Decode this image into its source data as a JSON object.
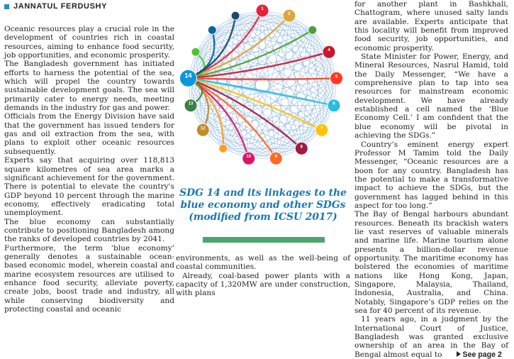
{
  "byline": "JANNATUL FERDUSHY",
  "col1": [
    "Oceanic resources play a crucial role in the development of countries rich in coastal resources, aiming to enhance food security, job opportunities, and economic prosperity.",
    "The Bangladesh government has initiated efforts to harness the potential of the sea, which will propel the country towards sustainable development goals. The sea will primarily cater to energy needs, meeting demands in the industry for gas and power.",
    "Officials from the Energy Division have said that the government has issued tenders for gas and oil extraction from the sea, with plans to exploit other oceanic resources subsequently.",
    "Experts say that acquiring over 118,813 square kilometres of sea area marks a significant achievement for the government. There is potential to elevate the country's GDP beyond 10 percent through the marine economy, effectively eradicating total unemployment.",
    "The blue economy can substantially contribute to positioning Bangladesh among the ranks of developed countries by 2041.",
    "Furthermore, the term ‘blue economy’ generally denotes a sustainable ocean-based economic model, wherein coastal and marine ecosystem resources are utilised to enhance food security, alleviate poverty, create jobs, boost trade and industry, all while conserving biodiversity and protecting coastal and oceanic"
  ],
  "col2": [
    "environments, as well as the well-being of coastal communities.",
    "Already, coal-based power plants with a capacity of 1,320MW are under construction, with plans"
  ],
  "col3": [
    "for another plant in Bashkhali, Chattogram, where unused salty lands are available. Experts anticipate that this locality will benefit from improved food security, job opportunities, and economic prosperity.",
    "State Minister for Power, Energy, and Mineral Resources, Nasrul Hamid, told the Daily Messenger, “We have a comprehensive plan to tap into sea resources for mainstream economic development. We have already established a cell named the ‘Blue Economy Cell.’ I am confident that the blue economy will be pivotal in achieving the SDGs.”",
    "Country’s eminent energy expert Professor M Tamim told the Daily Messenger, “Oceanic resources are a boon for any country. Bangladesh has the potential to make a transformative impact to achieve the SDGs, but the government has lagged behind in this aspect for too long.”",
    "The Bay of Bengal harbours abundant resources. Beneath its brackish waters lie vast reserves of valuable minerals and marine life. Marine tourism alone presents a billion-dollar revenue opportunity. The maritime economy has bolstered the economies of maritime nations like Hong Kong, Japan, Singapore, Malaysia, Thailand, Indonesia, Australia, and China. Notably, Singapore’s GDP relies on the sea for 40 percent of its revenue.",
    "11 years ago, in a judgment by the International Court of Justice, Bangladesh was granted exclusive ownership of an area in the Bay of Bengal almost equal to"
  ],
  "see_page": "See page 2",
  "caption": "SDG 14 and its linkages to the blue economy and other SDGs (modified from ICSU 2017)",
  "diagram": {
    "node_labels": [
      "1",
      "2",
      "4",
      "5",
      "6",
      "7",
      "8",
      "9",
      "10",
      "12",
      "13",
      "14"
    ],
    "node_colors": {
      "1": "#e5243b",
      "2": "#dda63a",
      "3": "#4c9f38",
      "4": "#c5192d",
      "5": "#ff3a21",
      "6": "#26bde2",
      "7": "#fcc30b",
      "8": "#a21942",
      "9": "#fd6925",
      "10": "#dd1367",
      "11": "#fd9d24",
      "12": "#bf8b2e",
      "13": "#3f7e44",
      "14": "#0a97d9",
      "15": "#56c02b",
      "16": "#00689d",
      "17": "#19486a"
    },
    "accent": "#1678b4"
  }
}
